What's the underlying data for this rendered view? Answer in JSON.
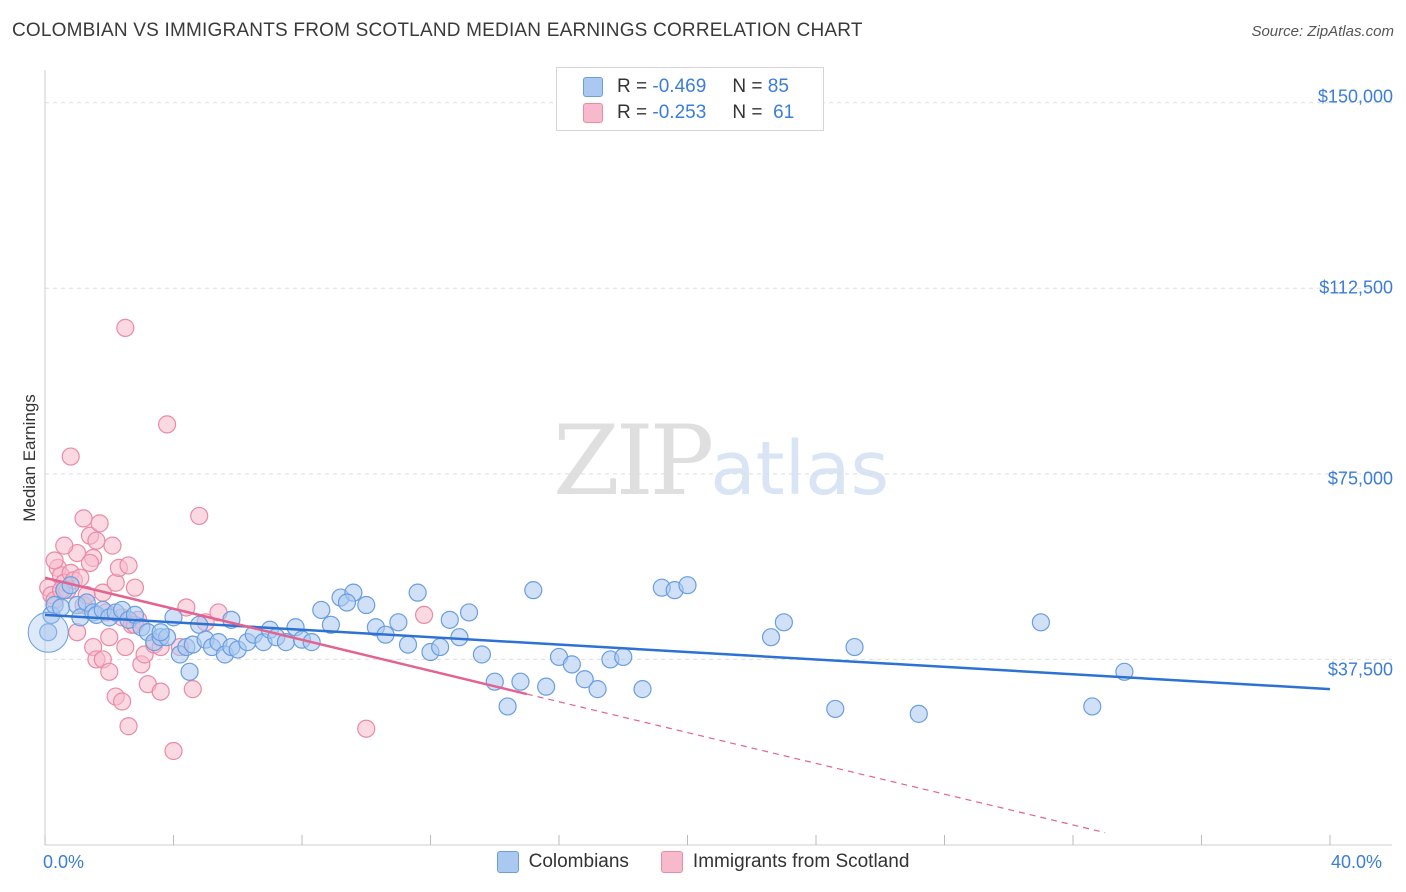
{
  "title": "COLOMBIAN VS IMMIGRANTS FROM SCOTLAND MEDIAN EARNINGS CORRELATION CHART",
  "source": "Source: ZipAtlas.com",
  "watermark": {
    "zip": "ZIP",
    "atlas": "atlas"
  },
  "legend_top": {
    "r_label": "R =",
    "n_label": "N =",
    "rows": [
      {
        "r": "-0.469",
        "n": "85"
      },
      {
        "r": "-0.253",
        "n": "61"
      }
    ]
  },
  "colors": {
    "blue_fill": "#aac8f0",
    "blue_stroke": "#6a9ee0",
    "blue_line": "#2d72d2",
    "pink_fill": "#f7b9cc",
    "pink_stroke": "#ea8aa8",
    "pink_line": "#e4628e",
    "axis_text": "#3b7dd8"
  },
  "chart_data": {
    "type": "scatter",
    "title": "COLOMBIAN VS IMMIGRANTS FROM SCOTLAND MEDIAN EARNINGS CORRELATION CHART",
    "xlabel": "",
    "ylabel": "Median Earnings",
    "xlim": [
      0,
      40
    ],
    "ylim": [
      0,
      155000
    ],
    "x_tick_labels": [
      "0.0%",
      "40.0%"
    ],
    "y_ticks": [
      37500,
      75000,
      112500,
      150000
    ],
    "y_tick_labels": [
      "$37,500",
      "$75,000",
      "$112,500",
      "$150,000"
    ],
    "grid": "horizontal dashed",
    "legend_position": "top-center and bottom",
    "series": [
      {
        "name": "Colombians",
        "color": "#6a9ee0",
        "trend": {
          "x": [
            0,
            40
          ],
          "y": [
            46500,
            31500
          ]
        },
        "points": [
          [
            0.1,
            43000
          ],
          [
            0.2,
            46500
          ],
          [
            0.3,
            48500
          ],
          [
            0.5,
            48000
          ],
          [
            0.6,
            51500
          ],
          [
            0.8,
            52500
          ],
          [
            1.0,
            48500
          ],
          [
            1.1,
            46000
          ],
          [
            1.3,
            49000
          ],
          [
            1.5,
            47000
          ],
          [
            1.6,
            46500
          ],
          [
            1.8,
            47500
          ],
          [
            2.0,
            46000
          ],
          [
            2.2,
            47000
          ],
          [
            2.4,
            47500
          ],
          [
            2.6,
            45500
          ],
          [
            2.8,
            46500
          ],
          [
            3.0,
            44000
          ],
          [
            3.2,
            43000
          ],
          [
            3.4,
            41000
          ],
          [
            3.6,
            42000
          ],
          [
            3.8,
            42000
          ],
          [
            4.0,
            46000
          ],
          [
            4.2,
            38500
          ],
          [
            4.4,
            40000
          ],
          [
            4.6,
            40500
          ],
          [
            4.8,
            44500
          ],
          [
            5.0,
            41500
          ],
          [
            5.2,
            40000
          ],
          [
            5.4,
            41000
          ],
          [
            5.6,
            38500
          ],
          [
            5.8,
            40000
          ],
          [
            6.0,
            39500
          ],
          [
            6.3,
            41000
          ],
          [
            6.5,
            42500
          ],
          [
            6.8,
            41000
          ],
          [
            7.0,
            43500
          ],
          [
            7.2,
            42000
          ],
          [
            7.5,
            41000
          ],
          [
            7.8,
            44000
          ],
          [
            8.0,
            41500
          ],
          [
            8.3,
            41000
          ],
          [
            8.6,
            47500
          ],
          [
            8.9,
            44500
          ],
          [
            9.2,
            50000
          ],
          [
            9.6,
            51000
          ],
          [
            10.0,
            48500
          ],
          [
            10.3,
            44000
          ],
          [
            10.6,
            42500
          ],
          [
            11.0,
            45000
          ],
          [
            11.3,
            40500
          ],
          [
            11.6,
            51000
          ],
          [
            12.0,
            39000
          ],
          [
            12.3,
            40000
          ],
          [
            12.6,
            45500
          ],
          [
            12.9,
            42000
          ],
          [
            13.2,
            47000
          ],
          [
            13.6,
            38500
          ],
          [
            14.0,
            33000
          ],
          [
            14.4,
            28000
          ],
          [
            14.8,
            33000
          ],
          [
            15.2,
            51500
          ],
          [
            15.6,
            32000
          ],
          [
            16.0,
            38000
          ],
          [
            16.4,
            36500
          ],
          [
            16.8,
            33500
          ],
          [
            17.2,
            31500
          ],
          [
            17.6,
            37500
          ],
          [
            18.0,
            38000
          ],
          [
            18.6,
            31500
          ],
          [
            19.2,
            52000
          ],
          [
            19.6,
            51500
          ],
          [
            20.0,
            52500
          ],
          [
            22.6,
            42000
          ],
          [
            23.0,
            45000
          ],
          [
            24.6,
            27500
          ],
          [
            25.2,
            40000
          ],
          [
            27.2,
            26500
          ],
          [
            31.0,
            45000
          ],
          [
            32.6,
            28000
          ],
          [
            33.6,
            35000
          ],
          [
            3.6,
            43000
          ],
          [
            4.5,
            35000
          ],
          [
            5.8,
            45500
          ],
          [
            9.4,
            49000
          ]
        ]
      },
      {
        "name": "Immigrants from Scotland",
        "color": "#ea8aa8",
        "trend": {
          "x": [
            0,
            15
          ],
          "y": [
            54000,
            30500
          ]
        },
        "trend_extrapolated": {
          "x": [
            15,
            33
          ],
          "y": [
            30500,
            2500
          ]
        },
        "points": [
          [
            0.1,
            52000
          ],
          [
            0.2,
            50500
          ],
          [
            0.3,
            49500
          ],
          [
            0.4,
            56000
          ],
          [
            0.5,
            54500
          ],
          [
            0.6,
            53000
          ],
          [
            0.7,
            51500
          ],
          [
            0.8,
            55000
          ],
          [
            0.9,
            53500
          ],
          [
            1.0,
            59000
          ],
          [
            1.1,
            54000
          ],
          [
            1.2,
            48500
          ],
          [
            1.3,
            50500
          ],
          [
            1.4,
            62500
          ],
          [
            1.5,
            58000
          ],
          [
            1.6,
            61500
          ],
          [
            1.7,
            65000
          ],
          [
            1.8,
            51000
          ],
          [
            1.9,
            47000
          ],
          [
            2.0,
            42000
          ],
          [
            2.1,
            60500
          ],
          [
            2.2,
            53000
          ],
          [
            2.3,
            56000
          ],
          [
            2.4,
            46000
          ],
          [
            2.5,
            40000
          ],
          [
            2.6,
            56500
          ],
          [
            2.7,
            44500
          ],
          [
            2.8,
            52000
          ],
          [
            2.9,
            45500
          ],
          [
            3.0,
            36500
          ],
          [
            3.1,
            38500
          ],
          [
            3.2,
            32500
          ],
          [
            3.4,
            40500
          ],
          [
            3.6,
            31000
          ],
          [
            3.8,
            85000
          ],
          [
            4.0,
            19000
          ],
          [
            4.2,
            40000
          ],
          [
            4.4,
            48000
          ],
          [
            4.6,
            31500
          ],
          [
            4.8,
            66500
          ],
          [
            5.0,
            45000
          ],
          [
            5.4,
            47000
          ],
          [
            0.8,
            78500
          ],
          [
            2.5,
            104500
          ],
          [
            1.0,
            43000
          ],
          [
            1.5,
            40000
          ],
          [
            1.6,
            37500
          ],
          [
            1.8,
            37500
          ],
          [
            2.0,
            35000
          ],
          [
            2.2,
            30000
          ],
          [
            2.4,
            29000
          ],
          [
            2.6,
            24000
          ],
          [
            1.2,
            66000
          ],
          [
            1.4,
            57000
          ],
          [
            0.3,
            57500
          ],
          [
            0.6,
            60500
          ],
          [
            2.8,
            44500
          ],
          [
            3.6,
            40000
          ],
          [
            10.0,
            23500
          ],
          [
            11.8,
            46500
          ],
          [
            0.5,
            51500
          ]
        ]
      }
    ]
  }
}
